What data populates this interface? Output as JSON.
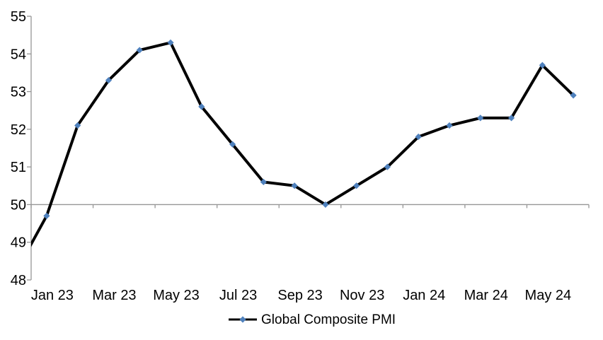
{
  "chart_data": {
    "type": "line",
    "title": "",
    "xlabel": "",
    "ylabel": "",
    "ylim": [
      48,
      55
    ],
    "y_ticks": [
      48,
      49,
      50,
      51,
      52,
      53,
      54,
      55
    ],
    "x_tick_labels": [
      "Jan 23",
      "Mar 23",
      "May 23",
      "Jul 23",
      "Sep 23",
      "Nov 23",
      "Jan 24",
      "Mar 24",
      "May 24"
    ],
    "axis_crossing_y": 50,
    "grid": false,
    "legend_position": "bottom",
    "series": [
      {
        "name": "Global Composite PMI",
        "x": [
          "Dec 22",
          "Jan 23",
          "Feb 23",
          "Mar 23",
          "Apr 23",
          "May 23",
          "Jun 23",
          "Jul 23",
          "Aug 23",
          "Sep 23",
          "Oct 23",
          "Nov 23",
          "Dec 23",
          "Jan 24",
          "Feb 24",
          "Mar 24",
          "Apr 24",
          "May 24",
          "Jun 24"
        ],
        "values": [
          48.2,
          49.7,
          52.1,
          53.3,
          54.1,
          54.3,
          52.6,
          51.6,
          50.6,
          50.5,
          50.0,
          50.5,
          51.0,
          51.8,
          52.1,
          52.3,
          52.3,
          53.7,
          52.9
        ],
        "marker": "diamond",
        "first_point_clipped_at_left_edge": true
      }
    ]
  },
  "legend": {
    "label": "Global Composite PMI"
  },
  "colors": {
    "line": "#000000",
    "marker": "#4F81BD",
    "axis": "#969696",
    "text": "#000000",
    "background": "#FFFFFF"
  }
}
